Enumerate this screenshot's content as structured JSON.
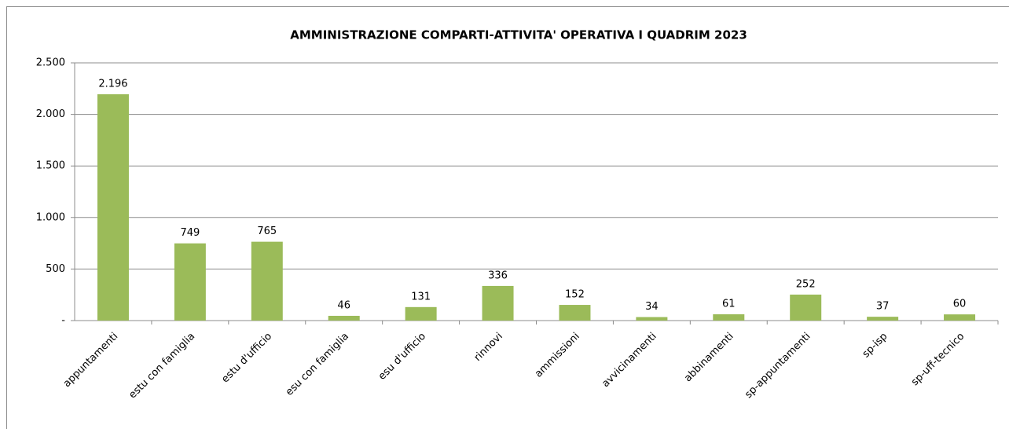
{
  "chart_data": {
    "type": "bar",
    "title": "AMMINISTRAZIONE COMPARTI-ATTIVITA' OPERATIVA  I QUADRIM 2023",
    "categories": [
      "appuntamenti",
      "estu con famiglia",
      "estu d'ufficio",
      "esu con famiglia",
      "esu d'ufficio",
      "rinnovi",
      "ammissioni",
      "avvicinamenti",
      "abbinamenti",
      "sp-appuntamenti",
      "sp-isp",
      "sp-uff-tecnico"
    ],
    "values": [
      2196,
      749,
      765,
      46,
      131,
      336,
      152,
      34,
      61,
      252,
      37,
      60
    ],
    "value_labels": [
      "2.196",
      "749",
      "765",
      "46",
      "131",
      "336",
      "152",
      "34",
      "61",
      "252",
      "37",
      "60"
    ],
    "color": "#9bbb59",
    "ylim": [
      0,
      2500
    ],
    "yticks": [
      {
        "value": 0,
        "label": "-"
      },
      500,
      {
        "value": 1000,
        "label": "1.000"
      },
      {
        "value": 1500,
        "label": "1.500"
      },
      {
        "value": 2000,
        "label": "2.000"
      },
      {
        "value": 2500,
        "label": "2.500"
      }
    ],
    "grid": true
  }
}
